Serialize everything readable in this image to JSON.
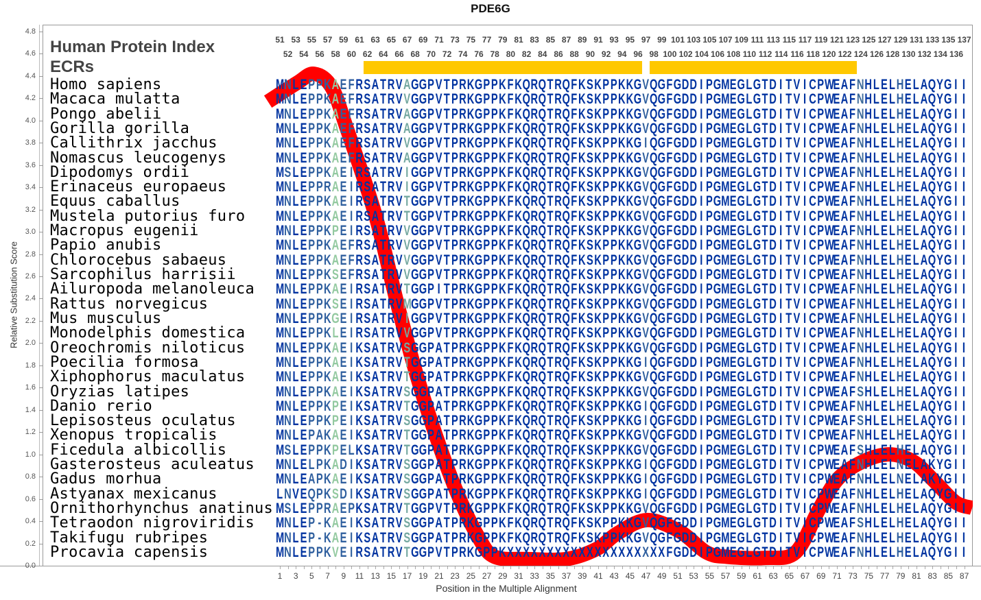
{
  "chart_data": {
    "type": "line",
    "title": "PDE6G",
    "xlabel": "Position in the Multiple Alignment",
    "ylabel": "Relative Substitution Score",
    "ylim": [
      0,
      4.8
    ],
    "xlim": [
      1,
      87
    ],
    "y_tick_labels": [
      "0.0",
      "0.2",
      "0.4",
      "0.6",
      "0.8",
      "1.0",
      "1.2",
      "1.4",
      "1.6",
      "1.8",
      "2.0",
      "2.2",
      "2.4",
      "2.6",
      "2.8",
      "3.0",
      "3.2",
      "3.4",
      "3.6",
      "3.8",
      "4.0",
      "4.2",
      "4.4",
      "4.6",
      "4.8"
    ],
    "x_tick_labels": [
      1,
      3,
      5,
      7,
      9,
      11,
      13,
      15,
      17,
      19,
      21,
      23,
      25,
      27,
      29,
      31,
      33,
      35,
      37,
      39,
      41,
      43,
      45,
      47,
      49,
      51,
      53,
      55,
      57,
      59,
      61,
      63,
      65,
      67,
      69,
      71,
      73,
      75,
      77,
      79,
      81,
      83,
      85,
      87
    ],
    "series": [
      {
        "name": "Relative Substitution Score",
        "color": "#ff0000",
        "x": [
          -0.5,
          3.2,
          5.3,
          7.5,
          9.4,
          13.0,
          15.7,
          18.2,
          20.6,
          23.3,
          26.0,
          28.0,
          32.0,
          37.0,
          40.8,
          43.4,
          47.1,
          51.2,
          54.6,
          57.2,
          62.0,
          65.8,
          68.7,
          71.0,
          73.8,
          77.3,
          80.5,
          83.1,
          85.9,
          88.0
        ],
        "y": [
          4.17,
          4.34,
          4.42,
          4.3,
          3.93,
          3.15,
          2.37,
          1.71,
          1.17,
          0.65,
          0.25,
          0.08,
          0.06,
          0.06,
          0.15,
          0.29,
          0.41,
          0.31,
          0.12,
          0.08,
          0.07,
          0.12,
          0.5,
          0.77,
          0.92,
          1.0,
          0.94,
          0.77,
          0.57,
          0.52
        ]
      }
    ]
  },
  "header": {
    "protein_index_title": "Human Protein Index",
    "ecr_title": "ECRs"
  },
  "protein_index_labels": [
    51,
    52,
    53,
    54,
    55,
    56,
    57,
    58,
    59,
    60,
    61,
    62,
    63,
    64,
    65,
    66,
    67,
    68,
    69,
    70,
    71,
    72,
    73,
    74,
    75,
    76,
    77,
    78,
    79,
    80,
    81,
    82,
    83,
    84,
    85,
    86,
    87,
    88,
    89,
    90,
    91,
    92,
    93,
    94,
    95,
    96,
    97,
    98,
    99,
    100,
    101,
    102,
    103,
    104,
    105,
    106,
    107,
    108,
    109,
    110,
    111,
    112,
    113,
    114,
    115,
    116,
    117,
    118,
    119,
    120,
    121,
    122,
    123,
    124,
    125,
    126,
    127,
    128,
    129,
    130,
    131,
    132,
    133,
    134,
    135,
    136,
    137
  ],
  "ecrs": [
    {
      "start": 62,
      "end": 96,
      "color": "#ffc800"
    },
    {
      "start": 98,
      "end": 123,
      "color": "#ffc800"
    }
  ],
  "residue_colors": {
    "D": "#0033a0",
    "M": "#2f5f9e",
    "G": "#93c9a0",
    "T": "#74a8a0",
    "N": "#3d6b9a"
  },
  "column_shades": "DMDDMMMGMMDDDDDDTDDDDDDDDDDDDDDDDDDDDDDDDDDDDDMDDDDDDDDDDDDDDDDDDDDDDDDDDNDDDDMDDDDDDDD",
  "alignment": [
    {
      "species": "Homo sapiens",
      "sequence": "MNLEPPKAEFRSATRVAGGPVTPRKGPPKFKQRQTRQFKSKPPKKGVQGFGDDIPGMEGLGTDITVICPWEAFNHLELHELAQYGII"
    },
    {
      "species": "Macaca mulatta",
      "sequence": "MNLEPPKAEFRSATRVVGGPVTPRKGPPKFKQRQTRQFKSKPPKKGVQGFGDDIPGMEGLGTDITVICPWEAFNHLELHELAQYGII"
    },
    {
      "species": "Pongo abelii",
      "sequence": "MNLEPPKAEFRSATRVAGGPVTPRKGPPKFKQRQTRQFKSKPPKKGVQGFGDDIPGMEGLGTDITVICPWEAFNHLELHELAQYGII"
    },
    {
      "species": "Gorilla gorilla",
      "sequence": "MNLEPPKAEFRSATRVAGGPVTPRKGPPKFKQRQTRQFKSKPPKKGVQGFGDDIPGMEGLGTDITVICPWEAFNHLELHELAQYGII"
    },
    {
      "species": "Callithrix jacchus",
      "sequence": "MNLEPPKAEFRSATRVVGGPVTPRKGPPKFKQRQTRQFKSKPPKKGIQGFGDDIPGMEGLGTDITVICPWEAFNHLELHELAQYGII"
    },
    {
      "species": "Nomascus leucogenys",
      "sequence": "MNLEPPKAEFRSATRVAGGPVTPRKGPPKFKQRQTRQFKSKPPKKGVQGFGDDIPGMEGLGTDITVICPWEAFNHLELHELAQYGII"
    },
    {
      "species": "Dipodomys ordii",
      "sequence": "MSLEPPKAEIRSATRVIGGPVTPRKGPPKFKQRQTRQFKSKPPKKGVQGFGDDIPGMEGLGTDITVICPWEAFNHLELHELAQYGII"
    },
    {
      "species": "Erinaceus europaeus",
      "sequence": "MNLEPPRAEIRSATRVIGGPVTPRKGPPKFKQRQTRQFKSKPPKKGVQGFGDDIPGMEGLGTDITVICPWEAFNHLELHELAQYGII"
    },
    {
      "species": "Equus caballus",
      "sequence": "MNLEPPKAEIRSATRVTGGPVTPRKGPPKFKQRQTRQFKSKPPKKGVQGFGDDIPGMEGLGTDITVICPWEAFNHLELHELAQYGII"
    },
    {
      "species": "Mustela putorius furo",
      "sequence": "MNLEPPKAEIRSATRVTGGPVTPRKGPPKFKQRQTRQFKSKPPKKGVQGFGDDIPGMEGLGTDITVICPWEAFNHLELHELAQYGII"
    },
    {
      "species": "Macropus eugenii",
      "sequence": "MNLEPPKPEIRSATRVVGGPVTPRKGPPKFKQRQTRQFKSKPPKKGVQGFGDDIPGMEGLGTDITVICPWEAFNHLELHELAQYGII"
    },
    {
      "species": "Papio anubis",
      "sequence": "MNLEPPKAEFRSATRVVGGPVTPRKGPPKFKQRQTRQFKSKPPKKGVQGFGDDIPGMEGLGTDITVICPWEAFNHLELHELAQYGII"
    },
    {
      "species": "Chlorocebus sabaeus",
      "sequence": "MNLEPPKAEFRSATRVVGGPVTPRKGPPKFKQRQTRQFKSKPPKKGVQGFGDDIPGMEGLGTDITVICPWEAFNHLELHELAQYGII"
    },
    {
      "species": "Sarcophilus harrisii",
      "sequence": "MNLEPPKSEFRSATRVVGGPVTPRKGPPKFKQRQTRQFKSKPPKKGVQGFGDDIPGMEGLGTDITVICPWEAFNHLELHELAQYGII"
    },
    {
      "species": "Ailuropoda melanoleuca",
      "sequence": "MNLEPPKAEIRSATRVTGGPITPRKGPPKFKQRQTRQFKSKPPKKGVQGFGDDIPGMEGLGTDITVICPWEAFNHLELHELAQYGII"
    },
    {
      "species": "Rattus norvegicus",
      "sequence": "MNLEPPKSEIRSATRVMGGPVTPRKGPPKFKQRQTRQFKSKPPKKGVQGFGDDIPGMEGLGTDITVICPWEAFNHLELHELAQYGII"
    },
    {
      "species": "Mus musculus",
      "sequence": "MNLEPPKGEIRSATRVIGGPVTPRKGPPKFKQRQTRQFKSKPPKKGVQGFGDDIPGMEGLGTDITVICPWEAFNHLELHELAQYGII"
    },
    {
      "species": "Monodelphis domestica",
      "sequence": "MNLEPPKLEIRSATRVVGGPVTPRKGPPKFKQRQTRQFKSKPPKKGVQGFGDDIPGMEGLGTDITVICPWEAFNHLELHELAQYGII"
    },
    {
      "species": "Oreochromis niloticus",
      "sequence": "MNLEPPKAEIKSATRVSGGPATPRKGPPKFKQRQTRQFKSKPPKKGVQGFGDDIPGMEGLGTDITVICPWEAFNHLELHELAQYGII"
    },
    {
      "species": "Poecilia formosa",
      "sequence": "MNLEPPKAEIKSATRVTGGPATPRKGPPKFKQRQTRQFKSKPPKKGIQGFGDDIPGMEGLGTDITVICPWEAFNHLELHELAQYGII"
    },
    {
      "species": "Xiphophorus maculatus",
      "sequence": "MNLEPPKAEIKSATRVTGGPATPRKGPPKFKQRQTRQFKSKPPKKGVQGFGDDIPGMEGLGTDITVICPWEAFNHLELHELAQYGII"
    },
    {
      "species": "Oryzias latipes",
      "sequence": "MNLEPPKAEIKSATRVSGGPATPRKGPPKFKQRQTRQFKSKPPKKGVQGFGDDIPGMEGLGTDITVICPWEAFSHLELHELAQYGII"
    },
    {
      "species": "Danio rerio",
      "sequence": "MNLEPPKPEIKSATRVTGGPATPRKGPPKFKQRQTRQFKSKPPKKGIQGFGDDIPGMEGLGTDITVICPWEAFNHLELHELAQYGII"
    },
    {
      "species": "Lepisosteus oculatus",
      "sequence": "MNLEPPKPEIKSATRVSGGPATPRKGPPKFKQRQTRQFKSKPPKKGIQGFGDDIPGMEGLGTDITVICPWEAFSHLELHELAQYGII"
    },
    {
      "species": "Xenopus tropicalis",
      "sequence": "MNLEPAKAEIKSATRVTGGPATPRKGPPKFKQRQTRQFKSKPPKKGVQGFGDDIPGMEGLGTDITVICPWEAFNHLELHELAQYGII"
    },
    {
      "species": "Ficedula albicollis",
      "sequence": "MSLEPPKPELKSATRVTGGPATPRKGPPKFKQRQTRQFKSKPPKKGVQGFGDDIPGMEGLGTDITVICPWEAFSHLELHELAQYGII"
    },
    {
      "species": "Gasterosteus aculeatus",
      "sequence": "MNLELPKADIKSATRVSGGPATPRKGPPKFKQRQTRQFKSKPPKKGIQGFGDDIPGMEGLGTDITVICPWEAFNHLELNELAKYGII"
    },
    {
      "species": "Gadus morhua",
      "sequence": "MNLEAPKAEIKSATRVSGGPATPRKGPPKFKQRQTRQFKSKPPKKGIQGFGDDIPGMEGLGTDITVICPWEAFNHLELNELAKYGII"
    },
    {
      "species": "Astyanax mexicanus",
      "sequence": "LNVEQPKSDIKSATRVSGGPATPRKGPPKFKQRQTRQFKSKPPKKGIQGFGDDIPGMEGLGTDITVICPWEAFNHLELHELAQYGII"
    },
    {
      "species": "Ornithorhynchus anatinus",
      "sequence": "MSLEPPRAEPKSATRVTGGPVTPRKGPPKFKQRQTRQFKSKPPKKGVQGFGDDIPGMEGLGTDITVICPWEAFNHLELHELAQYGII"
    },
    {
      "species": "Tetraodon nigroviridis",
      "sequence": "MNLEP-KAEIKSATRVSGGPATPRKGPPKFKQRQTRQFKSKPPKKGVQGFGDDIPGMEGLGTDITVICPWEAFSHLELHELAQYGII"
    },
    {
      "species": "Takifugu rubripes",
      "sequence": "MNLEP-KAEIKSATRVSGGPATPRKGPPKFKQRQTRQFKSKPPKKGVQGFGDDIPGMEGLGTDITVICPWEAFNHLELHELAQYGII"
    },
    {
      "species": "Procavia capensis",
      "sequence": "MNLEPPKVEIRSATRVTGGPVTPRKGPPKXXXXXXXXXXXXXXXXXXXXFGDDIPGMEGLGTDITVICPWEAFNHLELHELAQYGII"
    }
  ]
}
